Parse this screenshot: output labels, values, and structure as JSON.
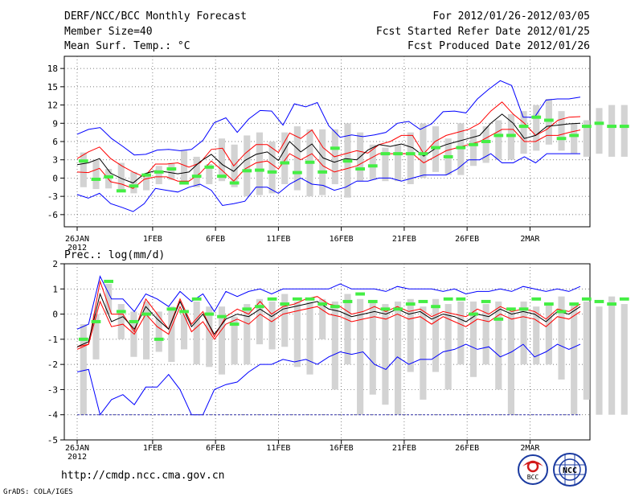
{
  "header": {
    "title": "DERF/NCC/BCC Monthly Forecast",
    "member_size": "Member Size=40",
    "variable": "Mean Surf. Temp.: °C",
    "period": "For 2012/01/26-2012/03/05",
    "fcst_started": "Fcst Started Refer Date 2012/01/25",
    "fcst_produced": "Fcst Produced Date 2012/01/26"
  },
  "footer": {
    "url": "http://cmdp.ncc.cma.gov.cn",
    "grads": "GrADS: COLA/IGES",
    "logo_bcc": "BCC",
    "logo_ncc": "NCC"
  },
  "colors": {
    "envelope": "#0000ff",
    "inner": "#ff0000",
    "mean": "#000000",
    "bar": "#d3d3d3",
    "marker": "#44ee44"
  },
  "chart_data": [
    {
      "type": "line",
      "title": "Mean Surf. Temp.: °C",
      "xlabel": "",
      "ylabel": "",
      "x_tick_labels": [
        "26JAN",
        "1FEB",
        "6FEB",
        "11FEB",
        "16FEB",
        "21FEB",
        "26FEB",
        "2MAR"
      ],
      "x_tick_days": [
        0,
        6,
        11,
        16,
        21,
        26,
        31,
        36
      ],
      "x_year_label": "2012",
      "ylim": [
        -8,
        20
      ],
      "y_ticks": [
        -6,
        -3,
        0,
        3,
        6,
        9,
        12,
        15,
        18
      ],
      "days": 40,
      "series": [
        {
          "name": "max",
          "values": [
            7.2,
            8.0,
            8.3,
            6.5,
            5.2,
            3.8,
            3.9,
            4.6,
            4.7,
            4.5,
            4.7,
            6.2,
            9.1,
            9.9,
            7.5,
            9.7,
            11.1,
            11.0,
            8.7,
            12.2,
            11.7,
            12.4,
            8.6,
            6.7,
            7.1,
            6.8,
            7.1,
            7.5,
            9.0,
            9.3,
            8.0,
            8.9,
            10.9,
            11.0,
            10.7,
            13.0,
            14.6,
            16.0,
            15.2,
            10.0,
            10.0,
            12.8,
            13.0,
            13.0,
            13.3
          ]
        },
        {
          "name": "upper",
          "values": [
            3.2,
            4.3,
            5.1,
            3.2,
            2.0,
            1.0,
            0.2,
            2.3,
            2.3,
            2.5,
            1.8,
            2.5,
            4.7,
            4.9,
            2.0,
            4.0,
            5.5,
            5.5,
            4.2,
            7.4,
            6.5,
            7.9,
            5.0,
            3.5,
            4.0,
            4.5,
            4.1,
            5.5,
            6.0,
            7.0,
            7.0,
            4.0,
            6.0,
            7.0,
            7.5,
            8.0,
            9.0,
            11.0,
            12.5,
            10.5,
            9.0,
            7.0,
            8.0,
            9.5,
            10.0,
            10.1
          ]
        },
        {
          "name": "mean",
          "values": [
            2.2,
            2.5,
            3.2,
            0.8,
            -0.1,
            -0.8,
            0.7,
            1.2,
            1.0,
            0.7,
            1.0,
            2.7,
            3.9,
            2.2,
            1.1,
            2.9,
            3.9,
            4.3,
            2.9,
            6.0,
            4.3,
            5.6,
            3.3,
            2.6,
            3.2,
            3.0,
            4.6,
            5.5,
            5.2,
            5.6,
            5.0,
            3.6,
            4.8,
            5.5,
            6.0,
            6.5,
            7.0,
            9.0,
            10.5,
            9.0,
            6.5,
            7.0,
            8.5,
            8.7,
            8.9,
            9.0
          ]
        },
        {
          "name": "lower",
          "values": [
            1.0,
            0.9,
            1.6,
            -0.6,
            -1.0,
            -1.7,
            -0.2,
            0.2,
            0.2,
            -0.5,
            -0.5,
            0.8,
            2.8,
            1.2,
            -0.5,
            1.5,
            2.5,
            2.8,
            1.5,
            4.0,
            3.0,
            4.0,
            2.0,
            1.0,
            1.5,
            2.0,
            3.0,
            4.0,
            4.0,
            4.0,
            4.0,
            2.5,
            3.5,
            4.5,
            5.0,
            5.5,
            6.0,
            7.0,
            8.0,
            8.0,
            6.0,
            6.0,
            7.0,
            7.0,
            7.5,
            7.9
          ]
        },
        {
          "name": "min",
          "values": [
            -2.7,
            -3.3,
            -2.5,
            -4.2,
            -4.8,
            -5.5,
            -4.2,
            -1.7,
            -2.0,
            -2.3,
            -1.5,
            -1.0,
            -2.0,
            -4.5,
            -4.2,
            -3.8,
            -1.5,
            -1.5,
            -2.5,
            -1.0,
            0.0,
            -1.0,
            -1.2,
            -2.0,
            -1.5,
            -0.5,
            -0.5,
            0.0,
            0.0,
            -0.5,
            0.0,
            0.5,
            0.5,
            0.5,
            1.5,
            3.0,
            3.0,
            4.0,
            2.5,
            2.5,
            3.5,
            2.5,
            4.0,
            4.0,
            4.0,
            4.0
          ]
        }
      ],
      "bars": {
        "name": "ensemble spread",
        "low": [
          -1.5,
          -1.8,
          -1.7,
          -2.3,
          -2.5,
          -2.0,
          -1.0,
          -0.3,
          -1.0,
          -1.5,
          -1.0,
          -0.5,
          -1.5,
          -3.0,
          -2.8,
          -2.5,
          -1.0,
          -2.0,
          -3.0,
          -2.8,
          -1.0,
          -3.2,
          -0.5,
          -0.3,
          -0.5,
          -0.5,
          -1.0,
          0.0,
          1.0,
          0.5,
          0.5,
          2.0,
          2.5,
          3.0,
          3.0,
          4.0,
          4.5,
          5.5,
          4.5,
          4.0,
          3.5,
          4.0,
          3.5,
          3.5
        ],
        "high": [
          4.2,
          3.0,
          1.5,
          2.5,
          1.0,
          0.5,
          2.0,
          2.5,
          4.5,
          3.5,
          2.3,
          6.5,
          5.5,
          7.0,
          7.5,
          6.0,
          7.5,
          8.5,
          8.0,
          8.0,
          8.0,
          9.0,
          7.5,
          5.5,
          5.0,
          5.5,
          7.5,
          9.0,
          8.5,
          6.5,
          9.0,
          8.0,
          8.5,
          9.5,
          10.5,
          11.0,
          12.0,
          13.0,
          11.0,
          9.0,
          9.5,
          11.5,
          12.0,
          12.0
        ]
      },
      "markers": {
        "name": "observed",
        "values": [
          2.8,
          -0.2,
          0.2,
          -2.1,
          -1.3,
          0.5,
          1.0,
          1.5,
          -0.8,
          0.3,
          1.8,
          0.3,
          -0.8,
          1.2,
          1.3,
          1.0,
          2.5,
          0.9,
          2.6,
          1.0,
          4.9,
          2.8,
          1.5,
          2.0,
          4.0,
          4.0,
          4.0,
          4.0,
          5.0,
          3.5,
          5.0,
          5.5,
          6.0,
          7.0,
          7.0,
          8.5,
          10.0,
          9.5,
          6.5,
          7.0,
          8.5,
          9.0,
          8.5,
          8.5
        ]
      }
    },
    {
      "type": "line",
      "title": "Prec.: log(mm/d)",
      "xlabel": "",
      "ylabel": "",
      "x_tick_labels": [
        "26JAN",
        "1FEB",
        "6FEB",
        "11FEB",
        "16FEB",
        "21FEB",
        "26FEB",
        "2MAR"
      ],
      "x_tick_days": [
        0,
        6,
        11,
        16,
        21,
        26,
        31,
        36
      ],
      "x_year_label": "2012",
      "ylim": [
        -5,
        2
      ],
      "y_ticks": [
        -5,
        -4,
        -3,
        -2,
        -1,
        0,
        1,
        2
      ],
      "days": 40,
      "series": [
        {
          "name": "max",
          "values": [
            -0.6,
            -0.4,
            1.5,
            0.6,
            0.6,
            0.1,
            0.8,
            0.6,
            0.3,
            0.9,
            0.5,
            0.8,
            0.1,
            0.9,
            0.7,
            0.9,
            1.0,
            0.8,
            1.0,
            1.0,
            1.0,
            1.0,
            1.0,
            1.2,
            1.0,
            1.0,
            1.0,
            0.9,
            1.1,
            1.0,
            1.0,
            1.0,
            0.9,
            1.0,
            0.8,
            0.9,
            0.9,
            1.0,
            0.9,
            1.1,
            1.0,
            0.9,
            1.0,
            0.9,
            1.1
          ]
        },
        {
          "name": "upper",
          "values": [
            -1.3,
            -1.2,
            1.3,
            0.0,
            0.0,
            -0.7,
            0.6,
            0.0,
            -0.6,
            0.6,
            -0.4,
            0.1,
            -0.9,
            -0.1,
            0.2,
            0.0,
            0.5,
            0.0,
            0.3,
            0.4,
            0.6,
            0.7,
            0.4,
            0.3,
            0.0,
            0.1,
            0.3,
            0.1,
            0.3,
            0.1,
            0.2,
            -0.1,
            0.1,
            0.0,
            -0.1,
            0.2,
            0.0,
            0.3,
            0.1,
            0.2,
            0.1,
            -0.2,
            0.2,
            0.1,
            0.4
          ]
        },
        {
          "name": "mean",
          "values": [
            -1.3,
            -1.1,
            0.8,
            -0.3,
            -0.1,
            -0.6,
            0.3,
            -0.2,
            -0.6,
            0.5,
            -0.5,
            0.0,
            -0.8,
            -0.2,
            0.0,
            -0.1,
            0.2,
            -0.1,
            0.2,
            0.3,
            0.4,
            0.5,
            0.2,
            0.1,
            -0.1,
            0.0,
            0.1,
            0.0,
            0.2,
            0.0,
            0.1,
            -0.2,
            0.0,
            -0.1,
            -0.3,
            0.0,
            -0.1,
            0.2,
            0.0,
            0.1,
            0.0,
            -0.3,
            0.1,
            0.0,
            0.3
          ]
        },
        {
          "name": "lower",
          "values": [
            -1.4,
            -1.2,
            0.5,
            -0.5,
            -0.4,
            -0.8,
            0.0,
            -0.5,
            -0.8,
            0.3,
            -0.7,
            -0.3,
            -1.0,
            -0.4,
            -0.2,
            -0.4,
            0.0,
            -0.3,
            0.0,
            0.1,
            0.2,
            0.3,
            0.0,
            -0.1,
            -0.3,
            -0.2,
            -0.1,
            -0.2,
            0.0,
            -0.2,
            -0.1,
            -0.4,
            -0.1,
            -0.3,
            -0.5,
            -0.2,
            -0.3,
            0.0,
            -0.2,
            -0.1,
            -0.2,
            -0.5,
            -0.1,
            -0.2,
            0.1
          ]
        },
        {
          "name": "min",
          "values": [
            -2.3,
            -2.2,
            -4.0,
            -3.4,
            -3.2,
            -3.6,
            -2.9,
            -2.9,
            -2.4,
            -3.0,
            -4.0,
            -4.0,
            -3.0,
            -2.8,
            -2.7,
            -2.3,
            -2.0,
            -2.0,
            -1.8,
            -1.9,
            -1.8,
            -2.0,
            -1.7,
            -1.5,
            -1.6,
            -1.5,
            -2.0,
            -2.2,
            -1.7,
            -2.0,
            -1.8,
            -1.8,
            -1.5,
            -1.4,
            -1.2,
            -1.4,
            -1.3,
            -1.7,
            -1.5,
            -1.2,
            -1.7,
            -1.5,
            -1.2,
            -1.4,
            -1.2
          ]
        }
      ],
      "bars": {
        "name": "ensemble spread",
        "low": [
          -4.0,
          -1.8,
          0.0,
          -1.0,
          -1.7,
          -1.8,
          -1.5,
          -1.9,
          -1.4,
          -2.0,
          -2.1,
          -2.4,
          -2.0,
          -2.0,
          -1.2,
          -1.4,
          -1.3,
          -2.1,
          -2.4,
          -1.0,
          -3.0,
          -2.0,
          -4.0,
          -3.2,
          -3.6,
          -4.0,
          -2.3,
          -3.4,
          -2.3,
          -3.0,
          -2.0,
          -2.5,
          -2.0,
          -3.0,
          -4.0,
          -2.0,
          -2.0,
          -2.0,
          -2.6,
          -4.0,
          -3.4,
          -4.0,
          -4.0,
          -4.0
        ],
        "high": [
          -0.4,
          0.0,
          1.2,
          0.4,
          0.1,
          0.5,
          0.1,
          0.3,
          0.0,
          0.5,
          0.3,
          0.3,
          -0.1,
          0.4,
          0.6,
          0.5,
          0.8,
          0.5,
          0.5,
          0.6,
          0.5,
          0.8,
          0.6,
          0.5,
          0.4,
          0.5,
          0.6,
          0.3,
          0.6,
          0.4,
          0.5,
          0.5,
          0.4,
          0.5,
          0.1,
          0.5,
          0.3,
          0.4,
          0.7,
          0.4,
          0.5,
          0.3,
          0.7,
          0.4
        ]
      },
      "markers": {
        "name": "observed",
        "values": [
          -1.0,
          -0.3,
          1.3,
          0.1,
          -0.3,
          0.0,
          -1.0,
          0.2,
          0.1,
          0.6,
          0.0,
          -0.1,
          -0.4,
          0.2,
          0.3,
          0.6,
          0.4,
          0.6,
          0.6,
          0.4,
          0.3,
          0.5,
          0.8,
          0.5,
          0.2,
          0.2,
          0.4,
          0.5,
          0.3,
          0.6,
          0.6,
          0.0,
          0.5,
          -0.2,
          0.2,
          0.2,
          0.6,
          0.4,
          0.1,
          0.4,
          0.6,
          0.5,
          0.4,
          0.6
        ]
      }
    }
  ]
}
